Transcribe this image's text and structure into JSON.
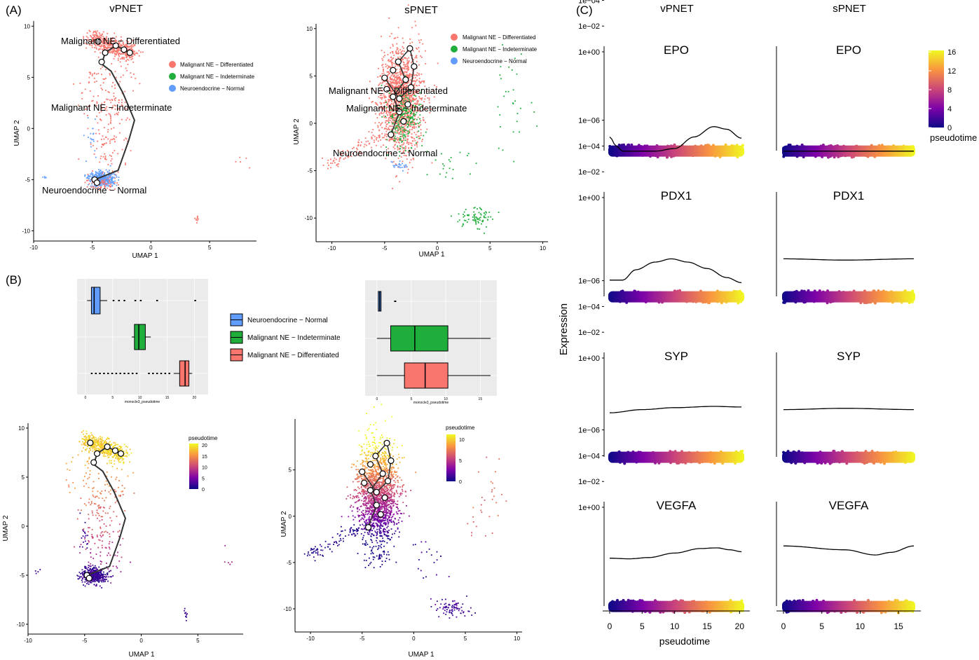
{
  "panels": {
    "A": "(A)",
    "B": "(B)",
    "C": "(C)"
  },
  "colors": {
    "differentiated": "#F8766D",
    "indeterminate": "#1FAE3C",
    "normal": "#619CFF",
    "trajectory": "#333333",
    "plasma": [
      "#0D0887",
      "#7E03A8",
      "#CC4778",
      "#F89540",
      "#F0F921"
    ]
  },
  "panelA": {
    "vpnet": {
      "title": "vPNET",
      "xlabel": "UMAP 1",
      "ylabel": "UMAP 2",
      "xticks": [
        "-10",
        "-5",
        "0",
        "5"
      ],
      "yticks": [
        "10",
        "5",
        "0",
        "-5",
        "-10"
      ],
      "xlim": [
        -10,
        9
      ],
      "ylim": [
        -11,
        10.5
      ],
      "legend": [
        "Malignant NE − Differentiated",
        "Malignant NE − Indeterminate",
        "Neuroendocrine − Normal"
      ],
      "labels": [
        "Malignant NE − Differentiated",
        "Malignant NE − Indeterminate",
        "Neuroendocrine − Normal"
      ],
      "trajectory": [
        [
          -4.8,
          -5.0
        ],
        [
          -3.9,
          -4.6
        ],
        [
          -2.8,
          -4.1
        ],
        [
          -1.9,
          -1.2
        ],
        [
          -1.4,
          0.8
        ],
        [
          -2.4,
          3.5
        ],
        [
          -3.4,
          5.6
        ],
        [
          -4.2,
          6.3
        ],
        [
          -3.9,
          7.4
        ],
        [
          -3.0,
          8.1
        ],
        [
          -1.8,
          7.4
        ]
      ]
    },
    "spnet": {
      "title": "sPNET",
      "xlabel": "UMAP 1",
      "ylabel": "UMAP 2",
      "xticks": [
        "-10",
        "-5",
        "0",
        "5",
        "10"
      ],
      "yticks": [
        "10",
        "5",
        "0",
        "-5",
        "-10"
      ],
      "xlim": [
        -11.5,
        10.5
      ],
      "ylim": [
        -12.5,
        10.5
      ],
      "legend": [
        "Malignant NE − Differentiated",
        "Malignant NE − Indeterminate",
        "Neuroendocrine − Normal"
      ],
      "labels": [
        "Malignant NE − Differentiated",
        "Malignant NE − Indeterminate",
        "Neuroendocrine − Normal"
      ],
      "trajectory": [
        [
          -4.4,
          -1.2
        ],
        [
          -3.6,
          1.2
        ],
        [
          -4.2,
          2.8
        ],
        [
          -3.0,
          4.6
        ],
        [
          -3.7,
          6.5
        ],
        [
          -2.6,
          7.9
        ],
        [
          -2.2,
          6.0
        ],
        [
          -2.5,
          3.8
        ],
        [
          -3.6,
          2.6
        ],
        [
          -5.0,
          4.8
        ]
      ]
    }
  },
  "panelB": {
    "legend": [
      "Neuroendocrine − Normal",
      "Malignant NE − Indeterminate",
      "Malignant NE − Differentiated"
    ],
    "box_left": {
      "xlabel": "monocle3_pseudotime",
      "xticks": [
        "0",
        "5",
        "10",
        "15",
        "20"
      ],
      "xlim": [
        -0.5,
        21.5
      ],
      "boxes": [
        {
          "group": "Neuroendocrine − Normal",
          "q1": 1.1,
          "median": 1.6,
          "q3": 2.7,
          "wmin": 0.3,
          "wmax": 4.0
        },
        {
          "group": "Malignant NE − Indeterminate",
          "q1": 9.0,
          "median": 9.8,
          "q3": 11.0,
          "wmin": 8.5,
          "wmax": 12.0
        },
        {
          "group": "Malignant NE − Differentiated",
          "q1": 17.3,
          "median": 18.3,
          "q3": 19.0,
          "wmin": 16.2,
          "wmax": 19.6
        }
      ]
    },
    "box_right": {
      "xlabel": "monocle3_pseudotime",
      "xticks": [
        "0",
        "5",
        "10",
        "15"
      ],
      "xlim": [
        -1,
        17
      ],
      "boxes": [
        {
          "group": "Neuroendocrine − Normal",
          "q1": 0.2,
          "median": 0.4,
          "q3": 0.6,
          "wmin": 0.2,
          "wmax": 0.6
        },
        {
          "group": "Malignant NE − Indeterminate",
          "q1": 2.0,
          "median": 5.5,
          "q3": 10.3,
          "wmin": 0,
          "wmax": 16.5
        },
        {
          "group": "Malignant NE − Differentiated",
          "q1": 4.0,
          "median": 7.0,
          "q3": 10.3,
          "wmin": 0,
          "wmax": 16.5
        }
      ]
    },
    "vpnet": {
      "xlabel": "UMAP 1",
      "ylabel": "UMAP 2",
      "xticks": [
        "-10",
        "-5",
        "0",
        "5"
      ],
      "yticks": [
        "10",
        "5",
        "0",
        "-5",
        "-10"
      ],
      "legend_title": "pseudotime",
      "legend_ticks": [
        "20",
        "15",
        "10",
        "5",
        "0"
      ],
      "xlim": [
        -10,
        9
      ],
      "ylim": [
        -11,
        10.5
      ]
    },
    "spnet": {
      "xlabel": "UMAP 1",
      "ylabel": "UMAP 2",
      "xticks": [
        "-10",
        "-5",
        "0",
        "5",
        "10"
      ],
      "yticks": [
        "5",
        "0",
        "-5",
        "-10"
      ],
      "legend_title": "pseudotime",
      "legend_ticks": [
        "10",
        "5",
        "0"
      ],
      "xlim": [
        -11.5,
        10.5
      ],
      "ylim": [
        -12.5,
        10.5
      ]
    }
  },
  "panelC": {
    "columns": [
      "vPNET",
      "sPNET"
    ],
    "genes": [
      "EPO",
      "PDX1",
      "SYP",
      "VEGFA"
    ],
    "yticks": [
      "1e+00",
      "1e−02",
      "1e−04",
      "1e−06"
    ],
    "ylabel": "Expression",
    "xlabel": "pseudotime",
    "xticks_left": [
      "0",
      "5",
      "10",
      "15",
      "20"
    ],
    "xticks_right": [
      "0",
      "5",
      "10",
      "15"
    ],
    "xlim_left": [
      0,
      20.5
    ],
    "xlim_right": [
      0,
      17
    ],
    "legend_title": "pseudotime",
    "legend_ticks": [
      "16",
      "12",
      "8",
      "4",
      "0"
    ],
    "curves": {
      "vPNET": {
        "EPO": [
          [
            0,
            -6.6
          ],
          [
            1,
            -7.3
          ],
          [
            2,
            -7.7
          ],
          [
            4,
            -7.7
          ],
          [
            7,
            -7.7
          ],
          [
            10,
            -7.5
          ],
          [
            13,
            -6.6
          ],
          [
            16,
            -5.8
          ],
          [
            18,
            -6.0
          ],
          [
            20.3,
            -6.7
          ]
        ],
        "PDX1": [
          [
            0,
            -6.4
          ],
          [
            2,
            -6.4
          ],
          [
            4,
            -5.6
          ],
          [
            7,
            -5.0
          ],
          [
            9.5,
            -4.75
          ],
          [
            12,
            -5.0
          ],
          [
            15,
            -5.5
          ],
          [
            18,
            -6.2
          ],
          [
            20.3,
            -6.6
          ]
        ],
        "SYP": [
          [
            0,
            -4.25
          ],
          [
            5,
            -4.0
          ],
          [
            10,
            -3.85
          ],
          [
            16,
            -3.75
          ],
          [
            20.3,
            -3.8
          ]
        ],
        "VEGFA": [
          [
            0,
            -3.95
          ],
          [
            3,
            -4.0
          ],
          [
            6,
            -3.9
          ],
          [
            10,
            -3.55
          ],
          [
            14,
            -3.2
          ],
          [
            16.5,
            -3.15
          ],
          [
            18.5,
            -3.3
          ],
          [
            20.3,
            -3.45
          ]
        ]
      },
      "sPNET": {
        "EPO": [
          [
            0,
            -7.7
          ],
          [
            17,
            -7.7
          ]
        ],
        "PDX1": [
          [
            0,
            -4.75
          ],
          [
            8,
            -4.85
          ],
          [
            17,
            -4.75
          ]
        ],
        "SYP": [
          [
            0,
            -4.0
          ],
          [
            8,
            -3.9
          ],
          [
            17,
            -4.0
          ]
        ],
        "VEGFA": [
          [
            0,
            -3.0
          ],
          [
            8,
            -3.3
          ],
          [
            12,
            -3.7
          ],
          [
            14,
            -3.5
          ],
          [
            17,
            -3.0
          ]
        ]
      }
    }
  }
}
